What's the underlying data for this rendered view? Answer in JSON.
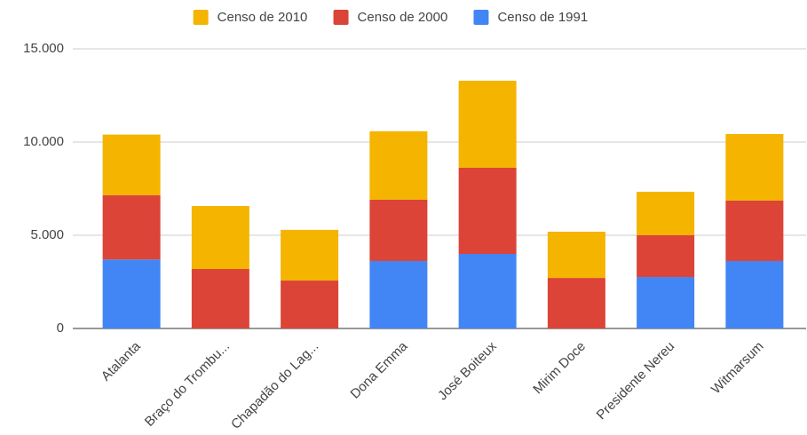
{
  "chart_data": {
    "type": "stacked_bar",
    "categories": [
      "Atalanta",
      "Braço do Trombu...",
      "Chapadão do Lag...",
      "Dona Emma",
      "José Boiteux",
      "Mirim Doce",
      "Presidente Nereu",
      "Witmarsum"
    ],
    "series": [
      {
        "name": "Censo de 1991",
        "color": "#4285f4",
        "values": [
          3700,
          null,
          null,
          3620,
          4000,
          null,
          2760,
          3620
        ]
      },
      {
        "name": "Censo de 2000",
        "color": "#db4437",
        "values": [
          3450,
          3190,
          2570,
          3290,
          4620,
          2710,
          2240,
          3240
        ]
      },
      {
        "name": "Censo de 2010",
        "color": "#f4b400",
        "values": [
          3250,
          3380,
          2720,
          3670,
          4670,
          2480,
          2330,
          3570
        ]
      }
    ],
    "ylim": [
      0,
      15000
    ],
    "yticks": [
      0,
      {
        "value": 5000,
        "label": "5.000"
      },
      {
        "value": 10000,
        "label": "10.000"
      },
      {
        "value": 15000,
        "label": "15.000"
      }
    ],
    "grid": true,
    "legend": "top"
  }
}
